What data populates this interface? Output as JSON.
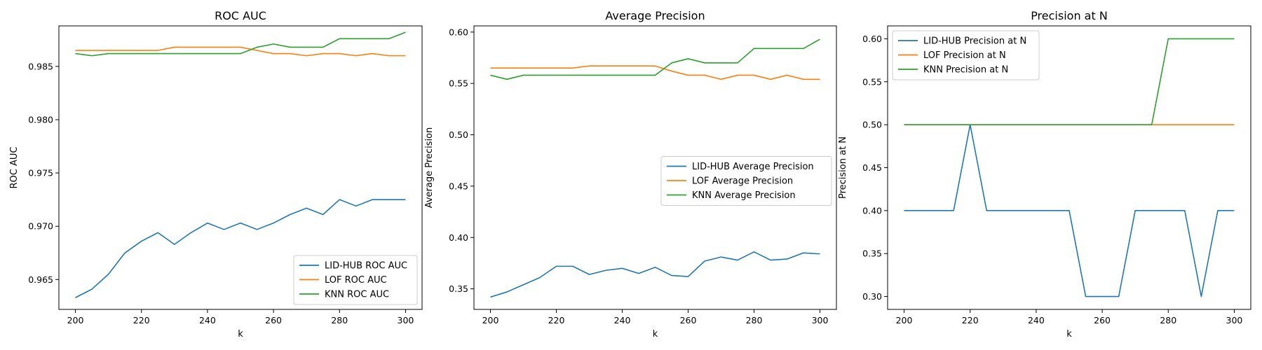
{
  "colors": {
    "lidhub": "#1f77b4",
    "lof": "#ff7f0e",
    "knn": "#2ca02c"
  },
  "chart_data": [
    {
      "type": "line",
      "title": "ROC AUC",
      "xlabel": "k",
      "ylabel": "ROC AUC",
      "xlim": [
        195,
        305
      ],
      "ylim": [
        0.9622,
        0.9888
      ],
      "xticks": [
        200,
        220,
        240,
        260,
        280,
        300
      ],
      "yticks": [
        0.965,
        0.97,
        0.975,
        0.98,
        0.985
      ],
      "ytick_decimals": 3,
      "legend_position": "lower-right",
      "x": [
        200,
        205,
        210,
        215,
        220,
        225,
        230,
        235,
        240,
        245,
        250,
        255,
        260,
        265,
        270,
        275,
        280,
        285,
        290,
        295,
        300
      ],
      "series": [
        {
          "name": "LID-HUB ROC AUC",
          "color": "#1f77b4",
          "values": [
            0.9633,
            0.9641,
            0.9655,
            0.9675,
            0.9686,
            0.9694,
            0.9683,
            0.9694,
            0.9703,
            0.9697,
            0.9703,
            0.9697,
            0.9703,
            0.9711,
            0.9717,
            0.9711,
            0.9725,
            0.9719,
            0.9725,
            0.9725,
            0.9725
          ]
        },
        {
          "name": "LOF ROC AUC",
          "color": "#ff7f0e",
          "values": [
            0.9865,
            0.9865,
            0.9865,
            0.9865,
            0.9865,
            0.9865,
            0.9868,
            0.9868,
            0.9868,
            0.9868,
            0.9868,
            0.9865,
            0.9862,
            0.9862,
            0.986,
            0.9862,
            0.9862,
            0.986,
            0.9862,
            0.986,
            0.986
          ]
        },
        {
          "name": "KNN ROC AUC",
          "color": "#2ca02c",
          "values": [
            0.9862,
            0.986,
            0.9862,
            0.9862,
            0.9862,
            0.9862,
            0.9862,
            0.9862,
            0.9862,
            0.9862,
            0.9862,
            0.9868,
            0.9871,
            0.9868,
            0.9868,
            0.9868,
            0.9876,
            0.9876,
            0.9876,
            0.9876,
            0.9882
          ]
        }
      ]
    },
    {
      "type": "line",
      "title": "Average Precision",
      "xlabel": "k",
      "ylabel": "Average Precision",
      "xlim": [
        195,
        305
      ],
      "ylim": [
        0.33,
        0.606
      ],
      "xticks": [
        200,
        220,
        240,
        260,
        280,
        300
      ],
      "yticks": [
        0.35,
        0.4,
        0.45,
        0.5,
        0.55,
        0.6
      ],
      "ytick_decimals": 2,
      "legend_position": "center-right",
      "x": [
        200,
        205,
        210,
        215,
        220,
        225,
        230,
        235,
        240,
        245,
        250,
        255,
        260,
        265,
        270,
        275,
        280,
        285,
        290,
        295,
        300
      ],
      "series": [
        {
          "name": "LID-HUB Average Precision",
          "color": "#1f77b4",
          "values": [
            0.342,
            0.347,
            0.354,
            0.361,
            0.372,
            0.372,
            0.364,
            0.368,
            0.37,
            0.365,
            0.371,
            0.363,
            0.362,
            0.377,
            0.381,
            0.378,
            0.386,
            0.378,
            0.379,
            0.385,
            0.384
          ]
        },
        {
          "name": "LOF Average Precision",
          "color": "#ff7f0e",
          "values": [
            0.565,
            0.565,
            0.565,
            0.565,
            0.565,
            0.565,
            0.567,
            0.567,
            0.567,
            0.567,
            0.567,
            0.562,
            0.558,
            0.558,
            0.554,
            0.558,
            0.558,
            0.554,
            0.558,
            0.554,
            0.554
          ]
        },
        {
          "name": "KNN Average Precision",
          "color": "#2ca02c",
          "values": [
            0.558,
            0.554,
            0.558,
            0.558,
            0.558,
            0.558,
            0.558,
            0.558,
            0.558,
            0.558,
            0.558,
            0.57,
            0.574,
            0.57,
            0.57,
            0.57,
            0.584,
            0.584,
            0.584,
            0.584,
            0.593
          ]
        }
      ]
    },
    {
      "type": "line",
      "title": "Precision at N",
      "xlabel": "k",
      "ylabel": "Precision at N",
      "xlim": [
        195,
        305
      ],
      "ylim": [
        0.285,
        0.615
      ],
      "xticks": [
        200,
        220,
        240,
        260,
        280,
        300
      ],
      "yticks": [
        0.3,
        0.35,
        0.4,
        0.45,
        0.5,
        0.55,
        0.6
      ],
      "ytick_decimals": 2,
      "legend_position": "upper-left",
      "x": [
        200,
        205,
        210,
        215,
        220,
        225,
        230,
        235,
        240,
        245,
        250,
        255,
        260,
        265,
        270,
        275,
        280,
        285,
        290,
        295,
        300
      ],
      "series": [
        {
          "name": "LID-HUB Precision at N",
          "color": "#1f77b4",
          "values": [
            0.4,
            0.4,
            0.4,
            0.4,
            0.5,
            0.4,
            0.4,
            0.4,
            0.4,
            0.4,
            0.4,
            0.3,
            0.3,
            0.3,
            0.4,
            0.4,
            0.4,
            0.4,
            0.3,
            0.4,
            0.4
          ]
        },
        {
          "name": "LOF Precision at N",
          "color": "#ff7f0e",
          "values": [
            0.5,
            0.5,
            0.5,
            0.5,
            0.5,
            0.5,
            0.5,
            0.5,
            0.5,
            0.5,
            0.5,
            0.5,
            0.5,
            0.5,
            0.5,
            0.5,
            0.5,
            0.5,
            0.5,
            0.5,
            0.5
          ]
        },
        {
          "name": "KNN Precision at N",
          "color": "#2ca02c",
          "values": [
            0.5,
            0.5,
            0.5,
            0.5,
            0.5,
            0.5,
            0.5,
            0.5,
            0.5,
            0.5,
            0.5,
            0.5,
            0.5,
            0.5,
            0.5,
            0.5,
            0.6,
            0.6,
            0.6,
            0.6,
            0.6
          ]
        }
      ]
    }
  ]
}
